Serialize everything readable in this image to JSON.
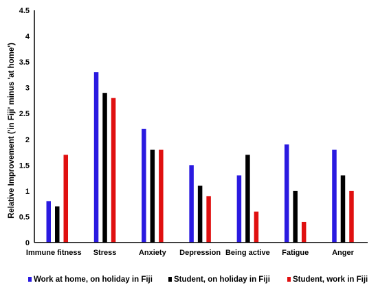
{
  "chart_data": {
    "type": "bar",
    "title": "",
    "xlabel": "",
    "ylabel": "Relative Improvement ('in Fiji' minus 'at home')",
    "ylim": [
      0,
      4.5
    ],
    "yticks": [
      "0",
      "0.5",
      "1",
      "1.5",
      "2",
      "2.5",
      "3",
      "3.5",
      "4",
      "4.5"
    ],
    "categories": [
      "Immune fitness",
      "Stress",
      "Anxiety",
      "Depression",
      "Being active",
      "Fatigue",
      "Anger"
    ],
    "series": [
      {
        "name": "Work at home, on holiday in Fiji",
        "color": "#2a1ae0",
        "values": [
          0.8,
          3.3,
          2.2,
          1.5,
          1.3,
          1.9,
          1.8
        ]
      },
      {
        "name": "Student, on holiday in Fiji",
        "color": "#000000",
        "values": [
          0.7,
          2.9,
          1.8,
          1.1,
          1.7,
          1.0,
          1.3
        ]
      },
      {
        "name": "Student, work in Fiji",
        "color": "#e01010",
        "values": [
          1.7,
          2.8,
          1.8,
          0.9,
          0.6,
          0.4,
          1.0
        ]
      }
    ],
    "grid": false,
    "legend_position": "bottom"
  }
}
